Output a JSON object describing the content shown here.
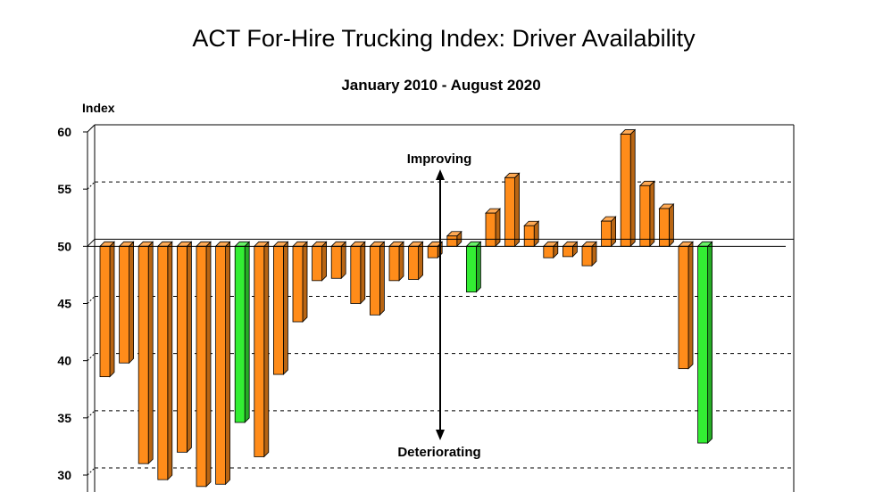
{
  "chart_data": {
    "type": "bar",
    "title": "ACT For-Hire Trucking Index: Driver Availability",
    "subtitle": "January 2010 - August 2020",
    "ylabel": "Index",
    "xlabel": "",
    "ylim": [
      30,
      60
    ],
    "yticks": [
      30,
      35,
      40,
      45,
      50,
      55,
      60
    ],
    "baseline": 50,
    "grid": true,
    "colors": {
      "default": "#ff8c1a",
      "highlight": "#33ee33"
    },
    "values": [
      38.6,
      39.8,
      31.0,
      29.6,
      32.0,
      29.0,
      29.2,
      34.6,
      31.6,
      38.8,
      43.4,
      47.0,
      47.2,
      45.0,
      44.0,
      47.0,
      47.1,
      49.0,
      50.9,
      46.0,
      52.9,
      56.0,
      51.8,
      49.0,
      49.1,
      48.3,
      52.2,
      59.8,
      55.3,
      53.3,
      39.3,
      32.8
    ],
    "highlighted_indices": [
      7,
      19,
      31
    ],
    "annotations": {
      "up": "Improving",
      "down": "Deteriorating"
    }
  }
}
